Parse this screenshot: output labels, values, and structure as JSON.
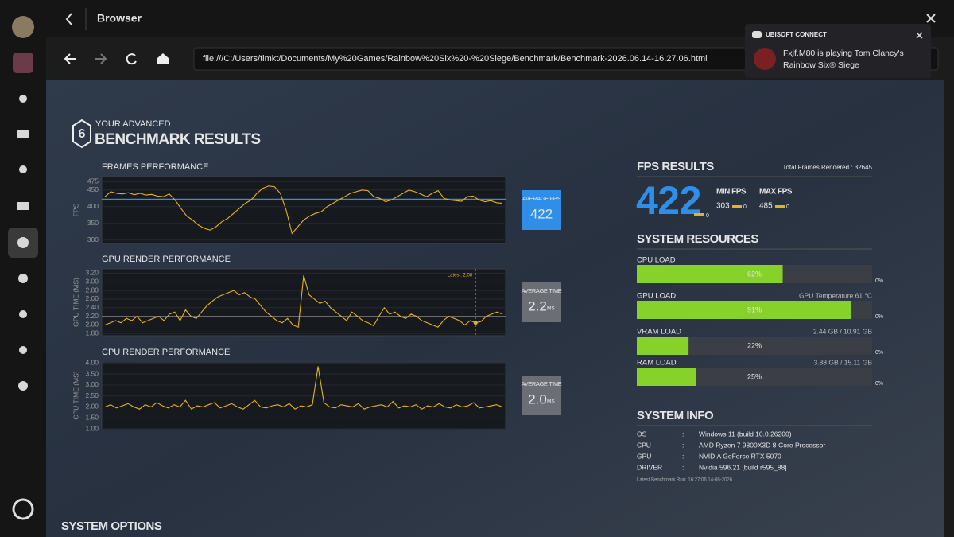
{
  "window": {
    "title": "Browser"
  },
  "toolbar": {
    "url": "file:///C:/Users/timkt/Documents/My%20Games/Rainbow%20Six%20-%20Siege/Benchmark/Benchmark-2026.06.14-16.27.06.html"
  },
  "notification": {
    "brand": "UBISOFT CONNECT",
    "message_1": "Fxjf.M80 is playing Tom Clancy's",
    "message_2": "Rainbow Six® Siege"
  },
  "header": {
    "logo": "6",
    "kicker": "YOUR ADVANCED",
    "title": "BENCHMARK RESULTS"
  },
  "chart_data": [
    {
      "type": "line",
      "title": "FRAMES PERFORMANCE",
      "y_label": "FPS",
      "color": "#e8b21c",
      "ylim": [
        290,
        490
      ],
      "yticks": [
        300,
        350,
        400,
        450,
        475
      ],
      "values": [
        430,
        445,
        440,
        438,
        442,
        436,
        440,
        435,
        437,
        432,
        430,
        438,
        420,
        395,
        372,
        360,
        345,
        335,
        330,
        340,
        355,
        365,
        380,
        395,
        410,
        420,
        440,
        455,
        462,
        460,
        440,
        390,
        320,
        340,
        360,
        372,
        380,
        385,
        400,
        410,
        420,
        430,
        440,
        445,
        450,
        448,
        430,
        425,
        415,
        420,
        430,
        440,
        450,
        445,
        438,
        430,
        440,
        448,
        425,
        420,
        418,
        416,
        430,
        432,
        420,
        415,
        418,
        412,
        410
      ],
      "average": 422,
      "average_title": "AVERAGE FPS",
      "average_color": "#2f8fe8"
    },
    {
      "type": "line",
      "title": "GPU RENDER PERFORMANCE",
      "y_label": "GPU TIME (MS)",
      "color": "#e8b21c",
      "ylim": [
        1.75,
        3.3
      ],
      "yticks": [
        {
          "value": 1.8,
          "label": "1.80"
        },
        {
          "value": 2,
          "label": "2.00"
        },
        {
          "value": 2.2,
          "label": "2.20"
        },
        {
          "value": 2.4,
          "label": "2.40"
        },
        {
          "value": 2.6,
          "label": "2.60"
        },
        {
          "value": 2.8,
          "label": "2.80"
        },
        {
          "value": 3,
          "label": "3.00"
        },
        {
          "value": 3.2,
          "label": "3.20"
        }
      ],
      "values": [
        2.0,
        2.05,
        2.1,
        2.05,
        2.15,
        2.1,
        2.2,
        2.05,
        2.1,
        2.15,
        2.2,
        2.1,
        2.25,
        2.3,
        2.1,
        2.35,
        2.2,
        2.15,
        2.3,
        2.45,
        2.55,
        2.65,
        2.7,
        2.75,
        2.8,
        2.7,
        2.75,
        2.65,
        2.6,
        2.45,
        2.3,
        2.2,
        2.1,
        2.05,
        2.15,
        2.0,
        1.95,
        3.15,
        2.7,
        2.6,
        2.5,
        2.55,
        2.4,
        2.3,
        2.2,
        2.1,
        2.3,
        2.2,
        2.1,
        2.05,
        1.98,
        2.2,
        2.4,
        2.25,
        2.3,
        2.2,
        2.15,
        2.25,
        2.2,
        2.1,
        2.05,
        2.0,
        1.95,
        2.1,
        2.2,
        2.15,
        2.1,
        2.0,
        2.1,
        2.05,
        2.08,
        2.2,
        2.25,
        2.3,
        2.25
      ],
      "annotation": "Latest: 2.08",
      "average": 2.2,
      "average_title": "AVERAGE TIME",
      "average_unit": "MS",
      "average_color": "#6b6f75"
    },
    {
      "type": "line",
      "title": "CPU RENDER PERFORMANCE",
      "y_label": "CPU TIME (MS)",
      "color": "#e8b21c",
      "ylim": [
        1,
        4.05
      ],
      "yticks": [
        {
          "value": 1,
          "label": "1.00"
        },
        {
          "value": 1.5,
          "label": "1.50"
        },
        {
          "value": 2,
          "label": "2.00"
        },
        {
          "value": 2.5,
          "label": "2.50"
        },
        {
          "value": 3,
          "label": "3.00"
        },
        {
          "value": 3.5,
          "label": "3.50"
        },
        {
          "value": 4,
          "label": "4.00"
        }
      ],
      "values": [
        2.0,
        2.1,
        1.95,
        2.05,
        2.15,
        2.0,
        1.9,
        2.1,
        2.0,
        2.2,
        2.05,
        1.95,
        2.1,
        2.0,
        2.3,
        1.9,
        2.05,
        2.0,
        2.1,
        2.2,
        1.95,
        2.05,
        2.15,
        2.0,
        1.9,
        2.1,
        2.3,
        2.0,
        1.95,
        2.05,
        2.1,
        2.0,
        2.15,
        1.9,
        2.05,
        2.0,
        2.1,
        3.85,
        2.2,
        2.0,
        1.95,
        2.1,
        2.05,
        2.0,
        2.15,
        1.9,
        2.0,
        2.05,
        2.1,
        2.0,
        2.25,
        1.95,
        2.05,
        2.0,
        2.1,
        1.9,
        2.05,
        2.0,
        2.15,
        2.0,
        1.95,
        2.1,
        2.0,
        2.05,
        2.2,
        1.95,
        2.0,
        2.05,
        2.1,
        2.0
      ],
      "average": {
        "value": 2,
        "label": "2.0"
      },
      "average_title": "AVERAGE TIME",
      "average_unit": "MS",
      "average_color": "#6b6f75"
    }
  ],
  "fps_results": {
    "title": "FPS RESULTS",
    "total_frames": "Total Frames Rendered : 32645",
    "average": 422,
    "average_delta": "0",
    "min_title": "MIN FPS",
    "min": 303,
    "min_delta": "0",
    "max_title": "MAX FPS",
    "max": 485,
    "max_delta": "0"
  },
  "system_resources": {
    "title": "SYSTEM RESOURCES",
    "color": "#86d12a",
    "items": [
      {
        "label": "CPU LOAD",
        "value": 62,
        "value_label": "62%",
        "floor_label": "0%"
      },
      {
        "label": "GPU LOAD",
        "detail": "GPU Temperature 61 °C",
        "value": 91,
        "value_label": "91%",
        "floor_label": "0%"
      },
      {
        "label": "VRAM LOAD",
        "detail": "2.44 GB / 10.91 GB",
        "value": 22,
        "value_label": "22%",
        "floor_label": "0%"
      },
      {
        "label": "RAM LOAD",
        "detail": "3.88 GB / 15.11 GB",
        "value": 25,
        "value_label": "25%",
        "floor_label": "0%"
      }
    ]
  },
  "system_info": {
    "title": "SYSTEM INFO",
    "rows": [
      [
        "OS",
        ":",
        "Windows 11 (build 10.0.26200)"
      ],
      [
        "CPU",
        ":",
        "AMD Ryzen 7 9800X3D 8-Core Processor"
      ],
      [
        "GPU",
        ":",
        "NVIDIA GeForce RTX 5070"
      ],
      [
        "DRIVER",
        ":",
        "Nvidia 596.21 [build r595_88]"
      ]
    ],
    "footer": "Latest Benchmark Run: 16:27:06 14-06-2026"
  },
  "system_options": {
    "title": "SYSTEM OPTIONS"
  }
}
